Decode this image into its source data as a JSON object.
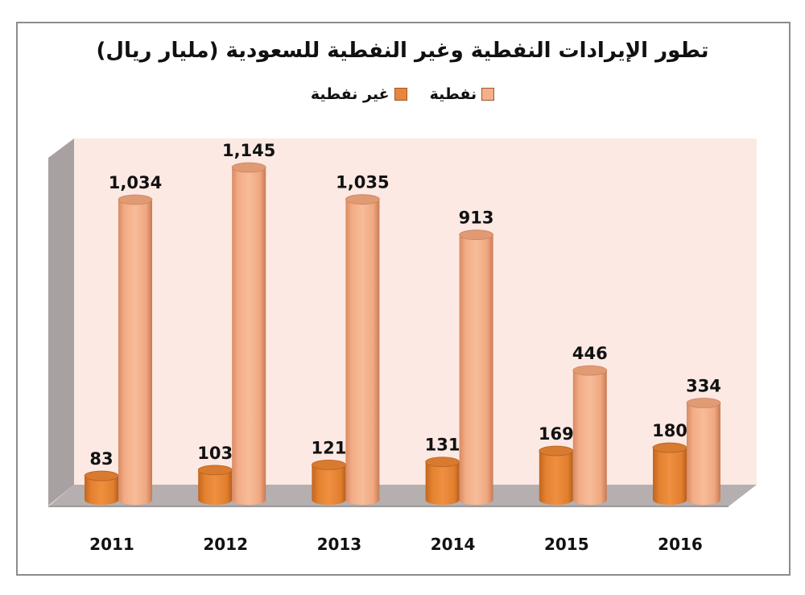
{
  "title": "تطور الإيرادات النفطية وغير النفطية للسعودية (مليار ريال)",
  "legend": [
    {
      "label": "نفطية",
      "color": "#F4B08A"
    },
    {
      "label": "غير نفطية",
      "color": "#E8873A"
    }
  ],
  "colors": {
    "oil": "#F4B08A",
    "oil_edge": "#D4845C",
    "oil_top": "#E0987010",
    "non_oil": "#E8873A",
    "non_oil_edge": "#C0651F",
    "back_wall": "#FCE9E3",
    "side_wall": "#A8A0A0",
    "floor": "#B4AEAE"
  },
  "chart_data": {
    "type": "bar",
    "style": "3d-cylinder",
    "title": "تطور الإيرادات النفطية وغير النفطية للسعودية (مليار ريال)",
    "xlabel": "",
    "ylabel": "",
    "unit": "مليار ريال",
    "categories": [
      "2011",
      "2012",
      "2013",
      "2014",
      "2015",
      "2016"
    ],
    "series": [
      {
        "name": "غير نفطية",
        "color": "#E8873A",
        "values": [
          83,
          103,
          121,
          131,
          169,
          180
        ],
        "labels": [
          "83",
          "103",
          "121",
          "131",
          "169",
          "180"
        ]
      },
      {
        "name": "نفطية",
        "color": "#F4B08A",
        "values": [
          1034,
          1145,
          1035,
          913,
          446,
          334
        ],
        "labels": [
          "1,034",
          "1,145",
          "1,035",
          "913",
          "446",
          "334"
        ]
      }
    ],
    "grid": false,
    "y_axis_visible": false,
    "legend_position": "top",
    "data_labels": true
  }
}
